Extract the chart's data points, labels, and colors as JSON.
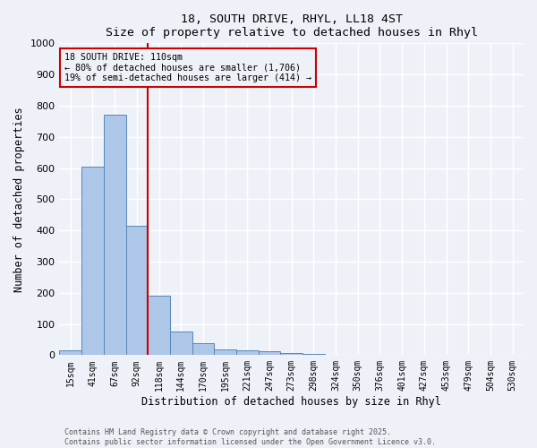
{
  "title1": "18, SOUTH DRIVE, RHYL, LL18 4ST",
  "title2": "Size of property relative to detached houses in Rhyl",
  "xlabel": "Distribution of detached houses by size in Rhyl",
  "ylabel": "Number of detached properties",
  "bar_labels": [
    "15sqm",
    "41sqm",
    "67sqm",
    "92sqm",
    "118sqm",
    "144sqm",
    "170sqm",
    "195sqm",
    "221sqm",
    "247sqm",
    "273sqm",
    "298sqm",
    "324sqm",
    "350sqm",
    "376sqm",
    "401sqm",
    "427sqm",
    "453sqm",
    "479sqm",
    "504sqm",
    "530sqm"
  ],
  "bar_values": [
    15,
    605,
    770,
    415,
    190,
    75,
    38,
    18,
    15,
    12,
    8,
    5,
    0,
    0,
    0,
    0,
    0,
    0,
    0,
    0,
    0
  ],
  "bar_color": "#aec6e8",
  "bar_edge_color": "#5588bb",
  "ylim": [
    0,
    1000
  ],
  "yticks": [
    0,
    100,
    200,
    300,
    400,
    500,
    600,
    700,
    800,
    900,
    1000
  ],
  "property_line_index": 4,
  "property_line_color": "#cc0000",
  "annotation_line1": "18 SOUTH DRIVE: 110sqm",
  "annotation_line2": "← 80% of detached houses are smaller (1,706)",
  "annotation_line3": "19% of semi-detached houses are larger (414) →",
  "annotation_box_color": "#cc0000",
  "footer_line1": "Contains HM Land Registry data © Crown copyright and database right 2025.",
  "footer_line2": "Contains public sector information licensed under the Open Government Licence v3.0.",
  "background_color": "#eef2f8",
  "grid_color": "#ffffff"
}
